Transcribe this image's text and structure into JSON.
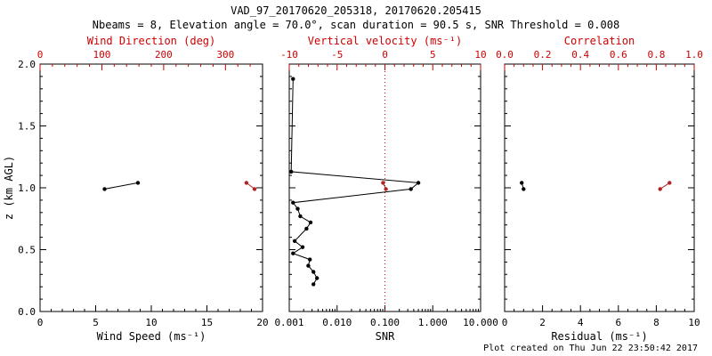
{
  "header": {
    "title": "VAD_97_20170620_205318, 20170620.205415",
    "subtitle": "Nbeams = 8, Elevation angle = 70.0°, scan duration = 90.5 s, SNR Threshold = 0.008"
  },
  "footer": {
    "created": "Plot created on Thu Jun 22 23:50:42 2017"
  },
  "colors": {
    "primary_series": "#000000",
    "secondary_series": "#b22222",
    "secondary_axis": "#cc0000",
    "axis": "#000000"
  },
  "chart_data": {
    "type": "scatter",
    "y_axis": {
      "label": "z (km AGL)",
      "min": 0.0,
      "max": 2.0,
      "tick_values": [
        0,
        0.5,
        1.0,
        1.5,
        2.0
      ],
      "tick_labels": [
        "0.0",
        "0.5",
        "1.0",
        "1.5",
        "2.0"
      ],
      "minor_per_interval": 5
    },
    "panels": [
      {
        "name": "wind",
        "show_y_labels": true,
        "x_bottom": {
          "label": "Wind Speed (ms⁻¹)",
          "scale": "linear",
          "min": 0,
          "max": 20,
          "tick_values": [
            0,
            5,
            10,
            15,
            20
          ],
          "tick_labels": [
            "0",
            "5",
            "10",
            "15",
            "20"
          ],
          "minor_per_interval": 5,
          "color": "#000000"
        },
        "x_top": {
          "label": "Wind Direction (deg)",
          "scale": "linear",
          "min": 0,
          "max": 360,
          "tick_values": [
            0,
            100,
            200,
            300
          ],
          "tick_labels": [
            "0",
            "100",
            "200",
            "300"
          ],
          "minor_per_interval": 5,
          "color": "#cc0000"
        },
        "series": [
          {
            "name": "wind-speed",
            "axis": "bottom",
            "color": "#000000",
            "points": [
              [
                5.8,
                0.99
              ],
              [
                8.8,
                1.04
              ]
            ]
          },
          {
            "name": "wind-direction",
            "axis": "top",
            "color": "#b22222",
            "points": [
              [
                334,
                1.04
              ],
              [
                347,
                0.99
              ]
            ]
          }
        ]
      },
      {
        "name": "snr",
        "show_y_labels": false,
        "x_bottom": {
          "label": "SNR",
          "scale": "log",
          "min": 0.001,
          "max": 10.0,
          "tick_values": [
            0.001,
            0.01,
            0.1,
            1.0,
            10.0
          ],
          "tick_labels": [
            "0.001",
            "0.010",
            "0.100",
            "1.000",
            "10.000"
          ],
          "color": "#000000"
        },
        "x_top": {
          "label": "Vertical velocity (ms⁻¹)",
          "scale": "linear",
          "min": -10,
          "max": 10,
          "tick_values": [
            -10,
            -5,
            0,
            5,
            10
          ],
          "tick_labels": [
            "-10",
            "-5",
            "0",
            "5",
            "10"
          ],
          "minor_per_interval": 5,
          "color": "#cc0000"
        },
        "ref_line": {
          "axis": "top",
          "value": 0,
          "color": "#cc0000",
          "style": "dotted"
        },
        "series": [
          {
            "name": "snr-profile",
            "axis": "bottom",
            "color": "#000000",
            "points": [
              [
                0.0012,
                1.88
              ],
              [
                0.0011,
                1.13
              ],
              [
                0.5,
                1.04
              ],
              [
                0.35,
                0.99
              ],
              [
                0.0012,
                0.88
              ],
              [
                0.0015,
                0.83
              ],
              [
                0.0017,
                0.77
              ],
              [
                0.0028,
                0.72
              ],
              [
                0.0023,
                0.67
              ],
              [
                0.0013,
                0.57
              ],
              [
                0.0019,
                0.52
              ],
              [
                0.0012,
                0.47
              ],
              [
                0.0027,
                0.42
              ],
              [
                0.0025,
                0.37
              ],
              [
                0.0032,
                0.32
              ],
              [
                0.0038,
                0.27
              ],
              [
                0.0032,
                0.22
              ]
            ]
          },
          {
            "name": "vertical-velocity",
            "axis": "top",
            "color": "#b22222",
            "points": [
              [
                -0.2,
                1.04
              ],
              [
                0.1,
                0.99
              ]
            ]
          }
        ]
      },
      {
        "name": "residual",
        "show_y_labels": false,
        "x_bottom": {
          "label": "Residual (ms⁻¹)",
          "scale": "linear",
          "min": 0,
          "max": 10,
          "tick_values": [
            0,
            2,
            4,
            6,
            8,
            10
          ],
          "tick_labels": [
            "0",
            "2",
            "4",
            "6",
            "8",
            "10"
          ],
          "minor_per_interval": 4,
          "color": "#000000"
        },
        "x_top": {
          "label": "Correlation",
          "scale": "linear",
          "min": 0.0,
          "max": 1.0,
          "tick_values": [
            0.0,
            0.2,
            0.4,
            0.6,
            0.8,
            1.0
          ],
          "tick_labels": [
            "0.0",
            "0.2",
            "0.4",
            "0.6",
            "0.8",
            "1.0"
          ],
          "minor_per_interval": 4,
          "color": "#cc0000"
        },
        "series": [
          {
            "name": "residual",
            "axis": "bottom",
            "color": "#000000",
            "points": [
              [
                0.9,
                1.04
              ],
              [
                1.0,
                0.99
              ]
            ]
          },
          {
            "name": "correlation",
            "axis": "top",
            "color": "#b22222",
            "points": [
              [
                0.82,
                0.99
              ],
              [
                0.87,
                1.04
              ]
            ]
          }
        ]
      }
    ]
  }
}
